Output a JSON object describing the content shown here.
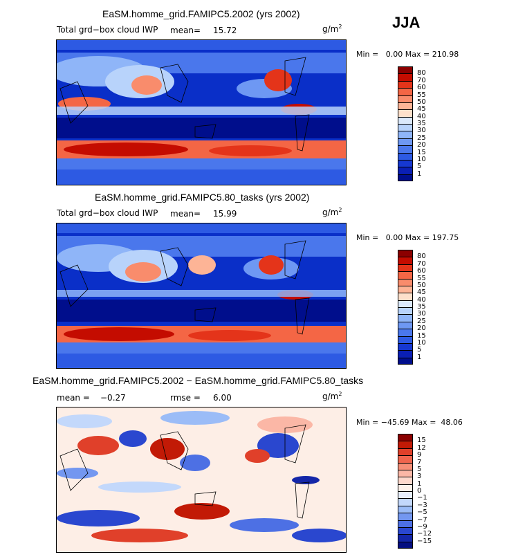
{
  "season": "JJA",
  "panels": [
    {
      "title": "EaSM.homme_grid.FAMIPC5.2002 (yrs 2002)",
      "variable": "Total grd−box cloud IWP",
      "stat1_label": "mean=",
      "stat1_value": "15.72",
      "stat2_label": "",
      "stat2_value": "",
      "units": "g/m",
      "units_exp": "2",
      "min_label": "Min =",
      "min_value": "0.00",
      "max_label": "Max =",
      "max_value": "210.98",
      "colorbar": {
        "labels": [
          "80",
          "70",
          "60",
          "55",
          "50",
          "45",
          "40",
          "35",
          "30",
          "25",
          "20",
          "15",
          "10",
          "5",
          "1"
        ],
        "colors": [
          "#8b0000",
          "#c40c00",
          "#e4341a",
          "#f46645",
          "#f98c6c",
          "#fdb496",
          "#fde0cb",
          "#dbe9fb",
          "#b8d3fb",
          "#8fb5f8",
          "#6e98f3",
          "#4a77ec",
          "#2d5ae3",
          "#1638d1",
          "#0a1fb5",
          "#000e8c"
        ]
      }
    },
    {
      "title": "EaSM.homme_grid.FAMIPC5.80_tasks (yrs 2002)",
      "variable": "Total grd−box cloud IWP",
      "stat1_label": "mean=",
      "stat1_value": "15.99",
      "stat2_label": "",
      "stat2_value": "",
      "units": "g/m",
      "units_exp": "2",
      "min_label": "Min =",
      "min_value": "0.00",
      "max_label": "Max =",
      "max_value": "197.75",
      "colorbar": {
        "labels": [
          "80",
          "70",
          "60",
          "55",
          "50",
          "45",
          "40",
          "35",
          "30",
          "25",
          "20",
          "15",
          "10",
          "5",
          "1"
        ],
        "colors": [
          "#8b0000",
          "#c40c00",
          "#e4341a",
          "#f46645",
          "#f98c6c",
          "#fdb496",
          "#fde0cb",
          "#dbe9fb",
          "#b8d3fb",
          "#8fb5f8",
          "#6e98f3",
          "#4a77ec",
          "#2d5ae3",
          "#1638d1",
          "#0a1fb5",
          "#000e8c"
        ]
      }
    },
    {
      "title": "EaSM.homme_grid.FAMIPC5.2002 − EaSM.homme_grid.FAMIPC5.80_tasks",
      "variable": "",
      "stat1_label": "mean =",
      "stat1_value": "−0.27",
      "stat2_label": "rmse =",
      "stat2_value": "6.00",
      "units": "g/m",
      "units_exp": "2",
      "min_label": "Min =",
      "min_value": "−45.69",
      "max_label": "Max =",
      "max_value": "48.06",
      "colorbar": {
        "labels": [
          "15",
          "12",
          "9",
          "7",
          "5",
          "3",
          "1",
          "0",
          "−1",
          "−3",
          "−5",
          "−7",
          "−9",
          "−12",
          "−15"
        ],
        "colors": [
          "#8b0000",
          "#c21a06",
          "#e0402a",
          "#f0654e",
          "#f78f78",
          "#fbb7a6",
          "#fdd8cc",
          "#fdf1ea",
          "#e8f0fd",
          "#c3d8fb",
          "#9bbcf7",
          "#7397f0",
          "#4d70e4",
          "#2a47cf",
          "#1426a8",
          "#050f80"
        ]
      }
    }
  ]
}
